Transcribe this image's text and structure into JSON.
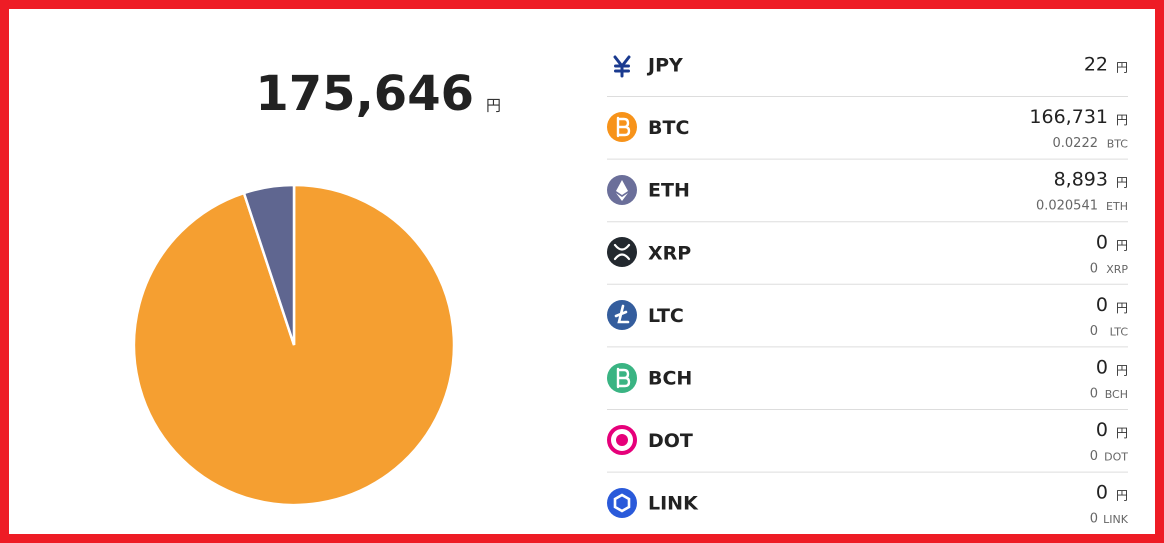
{
  "total": {
    "value": 175646,
    "label": "175,646"
  },
  "total_unit": "円",
  "assets": [
    {
      "symbol": "JPY",
      "jpy": 22,
      "unit": "円",
      "color": "#9aa0b0"
    },
    {
      "symbol": "BTC",
      "jpy": {
        "value": 166731,
        "label": "166,731"
      },
      "unit": "円",
      "amount": 0.0222,
      "amount_unit": "BTC",
      "color": "#f59f31"
    },
    {
      "symbol": "ETH",
      "jpy": {
        "value": 8893,
        "label": "8,893"
      },
      "unit": "円",
      "amount": 0.020541,
      "amount_unit": "ETH",
      "color": "#5f6690"
    },
    {
      "symbol": "XRP",
      "jpy": 0,
      "unit": "円",
      "amount": 0,
      "amount_unit": "XRP",
      "color": "#23292f"
    },
    {
      "symbol": "LTC",
      "jpy": 0,
      "unit": "円",
      "amount": 0,
      "amount_unit": "LTC",
      "color": "#345d9d"
    },
    {
      "symbol": "BCH",
      "jpy": 0,
      "unit": "円",
      "amount": 0,
      "amount_unit": "BCH",
      "color": "#3ab483"
    },
    {
      "symbol": "DOT",
      "jpy": 0,
      "unit": "円",
      "amount": 0,
      "amount_unit": "DOT",
      "color": "#e6007a"
    },
    {
      "symbol": "LINK",
      "jpy": 0,
      "unit": "円",
      "amount": 0,
      "amount_unit": "LINK",
      "color": "#2a5ada"
    }
  ]
}
